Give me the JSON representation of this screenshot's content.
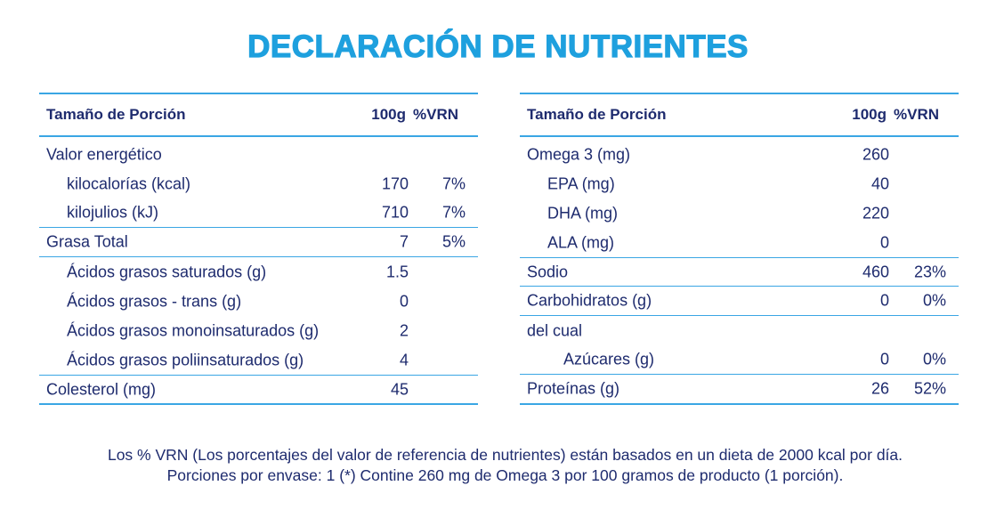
{
  "title": "DECLARACIÓN DE NUTRIENTES",
  "tables": [
    {
      "header": {
        "label": "Tamaño de Porción",
        "value": "100g",
        "pct": "%VRN"
      },
      "rows": [
        {
          "label": "Valor energético"
        },
        {
          "label": "kilocalorías (kcal)",
          "value": "170",
          "pct": "7%"
        },
        {
          "label": "kilojulios (kJ)",
          "value": "710",
          "pct": "7%"
        },
        {
          "label": "Grasa Total",
          "value": "7",
          "pct": "5%"
        },
        {
          "label": "Ácidos grasos saturados (g)",
          "value": "1.5"
        },
        {
          "label": "Ácidos grasos - trans (g)",
          "value": "0"
        },
        {
          "label": "Ácidos grasos monoinsaturados (g)",
          "value": "2"
        },
        {
          "label": "Ácidos grasos poliinsaturados (g)",
          "value": "4"
        },
        {
          "label": "Colesterol (mg)",
          "value": "45"
        }
      ]
    },
    {
      "header": {
        "label": "Tamaño de Porción",
        "value": "100g",
        "pct": "%VRN"
      },
      "rows": [
        {
          "label": "Omega 3 (mg)",
          "value": "260"
        },
        {
          "label": "EPA (mg)",
          "value": "40"
        },
        {
          "label": "DHA (mg)",
          "value": "220"
        },
        {
          "label": "ALA (mg)",
          "value": "0"
        },
        {
          "label": "Sodio",
          "value": "460",
          "pct": "23%"
        },
        {
          "label": "Carbohidratos (g)",
          "value": "0",
          "pct": "0%"
        },
        {
          "label": "del cual"
        },
        {
          "label": "Azúcares (g)",
          "value": "0",
          "pct": "0%"
        },
        {
          "label": "Proteínas (g)",
          "value": "26",
          "pct": "52%"
        }
      ]
    }
  ],
  "footer": [
    "Los % VRN (Los porcentajes del valor de referencia de nutrientes) están basados en un dieta de 2000 kcal por día.",
    "Porciones por envase: 1 (*) Contine 260 mg de Omega 3 por 100 gramos de producto (1 porción)."
  ]
}
